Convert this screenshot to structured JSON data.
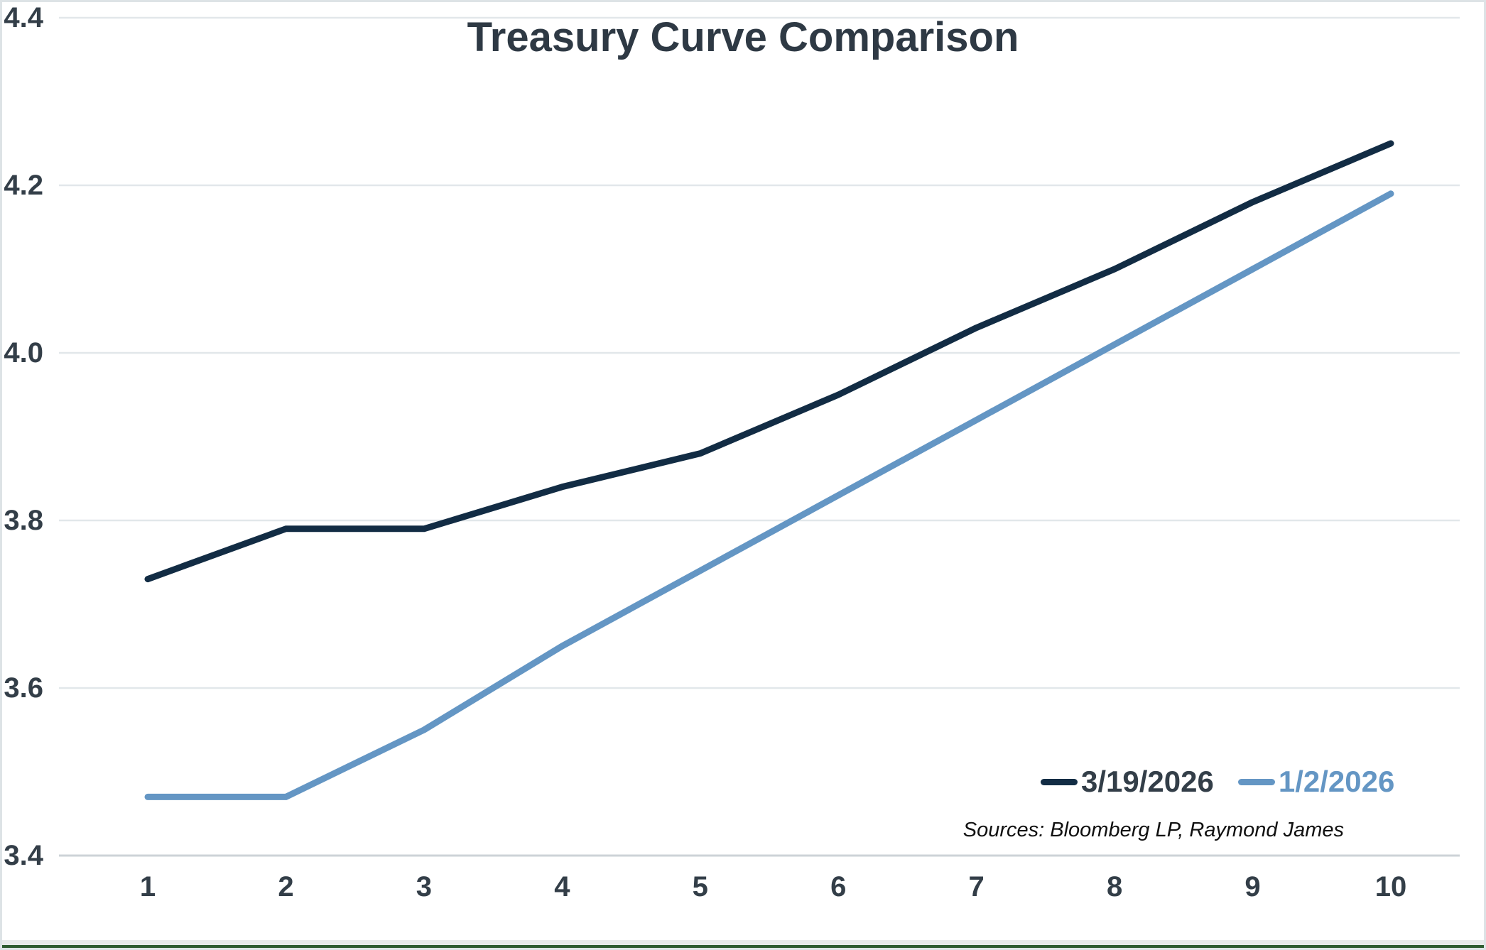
{
  "window": {
    "background": "#ffffff",
    "border_color": "#dde3e6",
    "bottom_accent_color": "#2e5c31"
  },
  "chart_data": {
    "type": "line",
    "title": "Treasury Curve Comparison",
    "x": [
      1,
      2,
      3,
      4,
      5,
      6,
      7,
      8,
      9,
      10
    ],
    "x_tick_labels": [
      "1",
      "2",
      "3",
      "4",
      "5",
      "6",
      "7",
      "8",
      "9",
      "10"
    ],
    "y_tick_values": [
      3.4,
      3.6,
      3.8,
      4.0,
      4.2,
      4.4
    ],
    "y_tick_labels": [
      "3.4",
      "3.6",
      "3.8",
      "4.0",
      "4.2",
      "4.4"
    ],
    "xlim": [
      1,
      10
    ],
    "ylim": [
      3.4,
      4.4
    ],
    "xlabel": "",
    "ylabel": "",
    "grid": "horizontal-only",
    "legend_position": "inside-bottom-right",
    "series": [
      {
        "name": "3/19/2026",
        "color": "#122c44",
        "label_color": "#333e48",
        "values": [
          3.73,
          3.79,
          3.79,
          3.84,
          3.88,
          3.95,
          4.03,
          4.1,
          4.18,
          4.25
        ]
      },
      {
        "name": "1/2/2026",
        "color": "#6496c4",
        "label_color": "#6496c4",
        "values": [
          3.47,
          3.47,
          3.55,
          3.65,
          3.74,
          3.83,
          3.92,
          4.01,
          4.1,
          4.19
        ]
      }
    ],
    "source_note": "Sources: Bloomberg LP, Raymond James",
    "styles": {
      "gridline_color": "#e2e7ea",
      "axisline_color": "#cdd3d7",
      "tick_label_color": "#333e48",
      "title_color": "#2e3944",
      "source_color": "#111111"
    }
  }
}
